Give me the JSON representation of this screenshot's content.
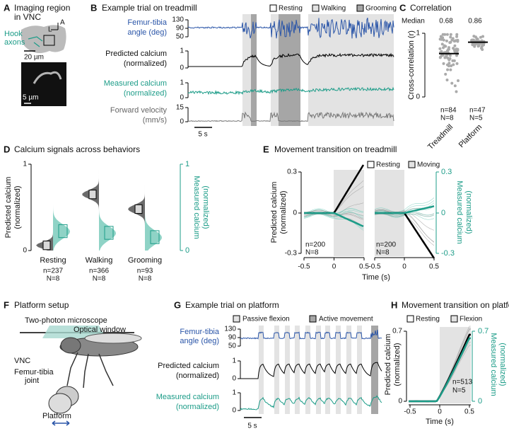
{
  "a": {
    "letter": "A",
    "title": [
      "Imaging region",
      "in VNC"
    ],
    "label": [
      "Hook",
      "axons"
    ],
    "scale_large": "20 µm",
    "scale_small": "5 µm",
    "axis_l": "L",
    "axis_a": "A"
  },
  "b": {
    "letter": "B",
    "title": "Example trial on treadmill",
    "legend": [
      "Resting",
      "Walking",
      "Grooming"
    ],
    "rows": [
      {
        "label": [
          "Femur-tibia",
          "angle (deg)"
        ],
        "ticks": [
          130,
          90,
          50
        ]
      },
      {
        "label": [
          "Predicted calcium",
          "(normalized)"
        ],
        "ticks": [
          1,
          0
        ]
      },
      {
        "label": [
          "Measured calcium",
          "(normalized)"
        ],
        "ticks": [
          1,
          0
        ]
      },
      {
        "label": [
          "Forward velocity",
          "(mm/s)"
        ],
        "ticks": [
          15,
          0
        ]
      }
    ],
    "scale": "5 s"
  },
  "c": {
    "letter": "C",
    "title": "Correlation",
    "median_label": "Median",
    "yticks": [
      1,
      0
    ],
    "ylabel": "Cross-correlation (r)",
    "groups": [
      {
        "name": "Treadmill",
        "median": 0.68,
        "n": "n=84",
        "N": "N=8"
      },
      {
        "name": "Platform",
        "median": 0.86,
        "n": "n=47",
        "N": "N=5"
      }
    ]
  },
  "d": {
    "letter": "D",
    "title": "Calcium signals across behaviors",
    "left_ticks": [
      1,
      0
    ],
    "right_ticks": [
      1,
      0
    ],
    "left_label": [
      "Predicted calcium",
      "(normalized)"
    ],
    "right_label": [
      "Measured calcium",
      "(normalized)"
    ],
    "groups": [
      {
        "name": "Resting",
        "n": "n=237",
        "N": "N=8"
      },
      {
        "name": "Walking",
        "n": "n=366",
        "N": "N=8"
      },
      {
        "name": "Grooming",
        "n": "n=93",
        "N": "N=8"
      }
    ]
  },
  "e": {
    "letter": "E",
    "title": "Movement transition on treadmill",
    "legend": [
      "Resting",
      "Moving"
    ],
    "left_ticks": [
      0.3,
      0,
      -0.3
    ],
    "right_ticks": [
      0.3,
      0,
      -0.3
    ],
    "xticks": [
      -0.5,
      0,
      0.5
    ],
    "xlabel": "Time (s)",
    "left_label": [
      "Predicted calcium",
      "(normalized)"
    ],
    "right_label": [
      "Measured calcium",
      "(normalized)"
    ],
    "n": "n=200",
    "N": "N=8"
  },
  "f": {
    "letter": "F",
    "title": "Platform setup",
    "microscope": "Two-photon microscope",
    "window": "Optical window",
    "vnc": "VNC",
    "joint": [
      "Femur-tibia",
      "joint"
    ],
    "platform": "Platform"
  },
  "g": {
    "letter": "G",
    "title": "Example trial on platform",
    "legend": [
      "Passive flexion",
      "Active movement"
    ],
    "rows": [
      {
        "label": [
          "Femur-tibia",
          "angle (deg)"
        ],
        "ticks": [
          130,
          90,
          50
        ]
      },
      {
        "label": [
          "Predicted calcium",
          "(normalized)"
        ],
        "ticks": [
          1,
          0
        ]
      },
      {
        "label": [
          "Measured calcium",
          "(normalized)"
        ],
        "ticks": [
          1,
          0
        ]
      }
    ],
    "scale": "5 s"
  },
  "h": {
    "letter": "H",
    "title": "Movement transition on platform",
    "legend": [
      "Resting",
      "Flexion"
    ],
    "left_ticks": [
      0.7,
      0
    ],
    "right_ticks": [
      0.7,
      0
    ],
    "xticks": [
      -0.5,
      0,
      0.5
    ],
    "xlabel": "Time (s)",
    "left_label": [
      "Predicted calcium",
      "(normalized)"
    ],
    "right_label": [
      "Measured calcium",
      "(normalized)"
    ],
    "n": "n=513",
    "N": "N=5"
  }
}
